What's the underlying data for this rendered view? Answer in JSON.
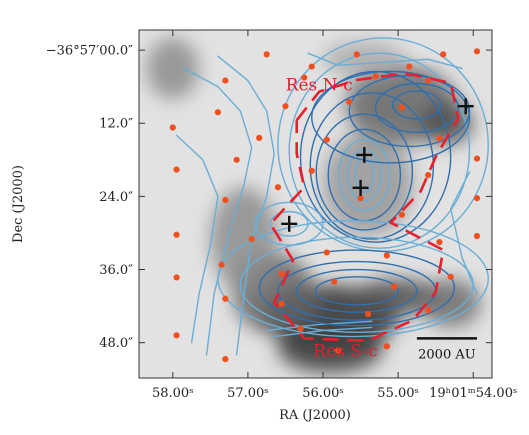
{
  "chart_data": {
    "type": "map",
    "xlabel": "RA (J2000)",
    "ylabel": "Dec (J2000)",
    "x_ticks": [
      "58.00ˢ",
      "57.00ˢ",
      "56.00ˢ",
      "55.00ˢ",
      "19ʰ01ᵐ54.00ˢ"
    ],
    "y_ticks": [
      "−36°57′00.0″",
      "12.0″",
      "24.0″",
      "36.0″",
      "48.0″"
    ],
    "x_tick_values": [
      58.0,
      57.0,
      56.0,
      55.0,
      54.0
    ],
    "y_tick_values": [
      0.0,
      12.0,
      24.0,
      36.0,
      48.0
    ],
    "xlim": [
      58.45,
      53.75
    ],
    "ylim": [
      -3.3,
      53.8
    ],
    "labels": [
      {
        "text": "Res N-c",
        "ra": 56.05,
        "dec": 6.6
      },
      {
        "text": "Res S-c",
        "ra": 55.7,
        "dec": 50.3
      }
    ],
    "scale_bar": {
      "label": "2000 AU",
      "ra_start": 54.75,
      "ra_end": 53.95,
      "dec": 47.3
    },
    "colors": {
      "dots": "#f05020",
      "crosses": "#111111",
      "dashed_ring": "#e8202e",
      "contours_light": "#6aaed6",
      "contours_dark": "#2f6fad",
      "labels": "#e0202e"
    },
    "crosses": [
      {
        "ra": 55.45,
        "dec": 17.2
      },
      {
        "ra": 55.5,
        "dec": 22.6
      },
      {
        "ra": 56.45,
        "dec": 28.5
      },
      {
        "ra": 54.1,
        "dec": 9.2
      }
    ],
    "dots": [
      {
        "ra": 56.75,
        "dec": 0.7
      },
      {
        "ra": 56.15,
        "dec": 2.7
      },
      {
        "ra": 55.55,
        "dec": 0.7
      },
      {
        "ra": 54.85,
        "dec": 2.7
      },
      {
        "ra": 54.4,
        "dec": 0.7
      },
      {
        "ra": 53.95,
        "dec": 0.2
      },
      {
        "ra": 57.3,
        "dec": 5.0
      },
      {
        "ra": 56.25,
        "dec": 4.5
      },
      {
        "ra": 55.3,
        "dec": 4.3
      },
      {
        "ra": 54.6,
        "dec": 5.0
      },
      {
        "ra": 57.4,
        "dec": 10.2
      },
      {
        "ra": 56.5,
        "dec": 9.2
      },
      {
        "ra": 55.65,
        "dec": 8.5
      },
      {
        "ra": 54.95,
        "dec": 9.4
      },
      {
        "ra": 56.85,
        "dec": 14.4
      },
      {
        "ra": 54.45,
        "dec": 14.5
      },
      {
        "ra": 58.0,
        "dec": 12.7
      },
      {
        "ra": 57.15,
        "dec": 18.0
      },
      {
        "ra": 56.15,
        "dec": 19.8
      },
      {
        "ra": 55.95,
        "dec": 14.7
      },
      {
        "ra": 54.6,
        "dec": 20.5
      },
      {
        "ra": 53.95,
        "dec": 17.8
      },
      {
        "ra": 57.95,
        "dec": 19.6
      },
      {
        "ra": 57.3,
        "dec": 24.6
      },
      {
        "ra": 56.6,
        "dec": 22.5
      },
      {
        "ra": 55.5,
        "dec": 24.3
      },
      {
        "ra": 54.95,
        "dec": 27.0
      },
      {
        "ra": 53.95,
        "dec": 24.3
      },
      {
        "ra": 57.95,
        "dec": 30.3
      },
      {
        "ra": 56.95,
        "dec": 31.0
      },
      {
        "ra": 55.95,
        "dec": 33.2
      },
      {
        "ra": 55.15,
        "dec": 33.7
      },
      {
        "ra": 54.45,
        "dec": 31.5
      },
      {
        "ra": 53.95,
        "dec": 30.5
      },
      {
        "ra": 57.95,
        "dec": 37.3
      },
      {
        "ra": 57.35,
        "dec": 35.2
      },
      {
        "ra": 56.55,
        "dec": 36.7
      },
      {
        "ra": 55.85,
        "dec": 38.0
      },
      {
        "ra": 55.05,
        "dec": 38.8
      },
      {
        "ra": 54.3,
        "dec": 37.2
      },
      {
        "ra": 57.3,
        "dec": 40.8
      },
      {
        "ra": 56.55,
        "dec": 41.6
      },
      {
        "ra": 55.4,
        "dec": 43.3
      },
      {
        "ra": 54.6,
        "dec": 42.7
      },
      {
        "ra": 57.95,
        "dec": 46.8
      },
      {
        "ra": 57.3,
        "dec": 50.7
      },
      {
        "ra": 56.3,
        "dec": 45.7
      },
      {
        "ra": 55.8,
        "dec": 49.3
      },
      {
        "ra": 55.15,
        "dec": 48.6
      }
    ],
    "dashed_ring": [
      [
        56.35,
        11.5
      ],
      [
        56.05,
        6.8
      ],
      [
        55.55,
        4.9
      ],
      [
        54.9,
        3.8
      ],
      [
        54.3,
        5.4
      ],
      [
        54.2,
        11.2
      ],
      [
        54.5,
        17.5
      ],
      [
        54.7,
        23.2
      ],
      [
        55.1,
        28.3
      ],
      [
        54.4,
        32.8
      ],
      [
        54.5,
        39.7
      ],
      [
        54.8,
        44.3
      ],
      [
        55.4,
        47.7
      ],
      [
        56.25,
        47.3
      ],
      [
        56.65,
        41.4
      ],
      [
        56.4,
        34.5
      ],
      [
        56.7,
        28.5
      ],
      [
        56.25,
        22.5
      ],
      [
        56.35,
        17.0
      ],
      [
        56.35,
        11.5
      ]
    ],
    "background": [
      {
        "ra": 54.95,
        "dec": 9.0,
        "rx": 0.75,
        "ry": 6.5,
        "tone": 0.35
      },
      {
        "ra": 54.35,
        "dec": 12.0,
        "rx": 0.35,
        "ry": 3.5,
        "tone": 0.25
      },
      {
        "ra": 55.4,
        "dec": 22.0,
        "rx": 0.6,
        "ry": 8.5,
        "tone": 0.6
      },
      {
        "ra": 55.9,
        "dec": 44.0,
        "rx": 0.9,
        "ry": 5.5,
        "tone": 0.1
      },
      {
        "ra": 55.9,
        "dec": 49.0,
        "rx": 0.7,
        "ry": 4.0,
        "tone": 0.15
      },
      {
        "ra": 55.0,
        "dec": 40.5,
        "rx": 0.6,
        "ry": 3.0,
        "tone": 0.25
      },
      {
        "ra": 56.65,
        "dec": 40.0,
        "rx": 0.55,
        "ry": 6.5,
        "tone": 0.35
      },
      {
        "ra": 54.3,
        "dec": 41.5,
        "rx": 0.4,
        "ry": 4.0,
        "tone": 0.4
      },
      {
        "ra": 57.05,
        "dec": 31.0,
        "rx": 0.45,
        "ry": 8.5,
        "tone": 0.55
      },
      {
        "ra": 58.0,
        "dec": 3.0,
        "rx": 0.35,
        "ry": 5.0,
        "tone": 0.55
      },
      {
        "ra": 55.45,
        "dec": 1.5,
        "rx": 0.55,
        "ry": 3.0,
        "tone": 0.7
      }
    ],
    "contours": [
      {
        "ra": 55.45,
        "dec": 20.5,
        "rx": 0.12,
        "ry": 2.8,
        "tone": "light"
      },
      {
        "ra": 55.45,
        "dec": 20.5,
        "rx": 0.22,
        "ry": 4.2,
        "tone": "light"
      },
      {
        "ra": 55.45,
        "dec": 20.5,
        "rx": 0.34,
        "ry": 5.8,
        "tone": "light"
      },
      {
        "ra": 55.45,
        "dec": 20.5,
        "rx": 0.48,
        "ry": 7.5,
        "tone": "dark"
      },
      {
        "ra": 55.45,
        "dec": 20.0,
        "rx": 0.64,
        "ry": 9.5,
        "tone": "dark"
      },
      {
        "ra": 55.35,
        "dec": 19.0,
        "rx": 0.82,
        "ry": 12.0,
        "tone": "dark"
      },
      {
        "ra": 55.3,
        "dec": 17.5,
        "rx": 1.0,
        "ry": 14.0,
        "tone": "dark"
      },
      {
        "ra": 55.25,
        "dec": 16.5,
        "rx": 1.2,
        "ry": 16.0,
        "tone": "light"
      },
      {
        "ra": 55.2,
        "dec": 15.5,
        "rx": 1.4,
        "ry": 17.5,
        "tone": "light"
      },
      {
        "ra": 54.75,
        "dec": 9.0,
        "rx": 0.32,
        "ry": 2.3,
        "tone": "dark"
      },
      {
        "ra": 54.75,
        "dec": 9.5,
        "rx": 0.55,
        "ry": 4.0,
        "tone": "dark"
      },
      {
        "ra": 54.85,
        "dec": 10.0,
        "rx": 0.8,
        "ry": 5.8,
        "tone": "dark"
      },
      {
        "ra": 55.1,
        "dec": 11.0,
        "rx": 1.05,
        "ry": 7.5,
        "tone": "dark"
      },
      {
        "ra": 55.55,
        "dec": 39.5,
        "rx": 0.55,
        "ry": 2.3,
        "tone": "dark"
      },
      {
        "ra": 55.55,
        "dec": 39.5,
        "rx": 0.8,
        "ry": 3.5,
        "tone": "dark"
      },
      {
        "ra": 55.55,
        "dec": 39.5,
        "rx": 1.05,
        "ry": 4.8,
        "tone": "dark"
      },
      {
        "ra": 55.55,
        "dec": 39.0,
        "rx": 1.3,
        "ry": 6.2,
        "tone": "dark"
      },
      {
        "ra": 55.55,
        "dec": 38.5,
        "rx": 1.55,
        "ry": 7.8,
        "tone": "light"
      },
      {
        "ra": 55.6,
        "dec": 37.5,
        "rx": 1.8,
        "ry": 9.5,
        "tone": "light"
      },
      {
        "ra": 56.45,
        "dec": 28.5,
        "rx": 0.25,
        "ry": 2.0,
        "tone": "light"
      },
      {
        "ra": 56.45,
        "dec": 28.5,
        "rx": 0.45,
        "ry": 3.5,
        "tone": "light"
      }
    ],
    "streamlines": [
      [
        [
          57.85,
          3.0
        ],
        [
          57.4,
          6.0
        ],
        [
          57.1,
          10.0
        ],
        [
          56.95,
          16.0
        ],
        [
          57.05,
          22.0
        ],
        [
          57.25,
          30.0
        ],
        [
          57.45,
          40.0
        ],
        [
          57.55,
          50.0
        ]
      ],
      [
        [
          57.4,
          1.0
        ],
        [
          57.0,
          5.0
        ],
        [
          56.75,
          10.0
        ],
        [
          56.65,
          17.0
        ],
        [
          56.75,
          24.0
        ],
        [
          56.95,
          31.0
        ],
        [
          57.05,
          40.0
        ],
        [
          57.15,
          50.0
        ]
      ],
      [
        [
          57.95,
          14.0
        ],
        [
          57.6,
          18.0
        ],
        [
          57.4,
          24.0
        ],
        [
          57.5,
          32.0
        ],
        [
          57.65,
          40.0
        ],
        [
          57.75,
          48.0
        ]
      ],
      [
        [
          56.2,
          0.5
        ],
        [
          55.8,
          2.5
        ],
        [
          55.2,
          2.0
        ],
        [
          54.6,
          1.5
        ],
        [
          54.15,
          3.0
        ]
      ],
      [
        [
          54.05,
          20.0
        ],
        [
          54.3,
          26.0
        ],
        [
          54.15,
          34.0
        ],
        [
          53.95,
          40.0
        ]
      ],
      [
        [
          56.75,
          46.0
        ],
        [
          56.05,
          45.0
        ],
        [
          55.35,
          44.5
        ]
      ],
      [
        [
          56.65,
          47.0
        ],
        [
          56.0,
          46.0
        ],
        [
          55.35,
          45.5
        ]
      ]
    ]
  }
}
